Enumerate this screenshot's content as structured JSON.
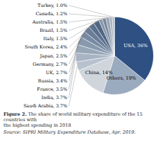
{
  "chart_data": {
    "type": "pie",
    "title": "Figure 2.",
    "subtitle": "The share of world military expenditure of the 15 countries with\nthe highest spending in 2018",
    "caption": "Source: SIPRI Military Expenditure Database, Apr. 2019.",
    "categories": [
      "USA",
      "Others",
      "China",
      "Saudi Arabia",
      "India",
      "France",
      "Russia",
      "UK",
      "Germany",
      "Japan",
      "South Korea",
      "Italy",
      "Brazil",
      "Australia",
      "Canada",
      "Turkey"
    ],
    "values": [
      36,
      19,
      14,
      3.7,
      3.7,
      3.5,
      3.4,
      2.7,
      2.7,
      2.5,
      2.4,
      1.5,
      1.5,
      1.5,
      1.2,
      1.0
    ],
    "value_labels": [
      "USA, 36%",
      "Others, 19%",
      "China, 14%",
      "Saudi Arabia, 3.7%",
      "India, 3.7%",
      "France, 3.5%",
      "Russia, 3.4%",
      "UK, 2.7%",
      "Germany, 2.7%",
      "Japan, 2.5%",
      "South Korea, 2.4%",
      "Italy, 1.5%",
      "Brazil, 1.5%",
      "Australia, 1.5%",
      "Canada, 1.2%",
      "Turkey, 1.0%"
    ],
    "colors": [
      "#2e5082",
      "#9aaabf",
      "#d0d5dc",
      "#b8c2cf",
      "#a8b4c3",
      "#98a7b8",
      "#8899ae",
      "#788aa3",
      "#6a7d99",
      "#5c718e",
      "#506784",
      "#8896a8",
      "#7888a0",
      "#9aa4b4",
      "#aab2bf",
      "#bac0ca"
    ],
    "data_labels": true
  }
}
